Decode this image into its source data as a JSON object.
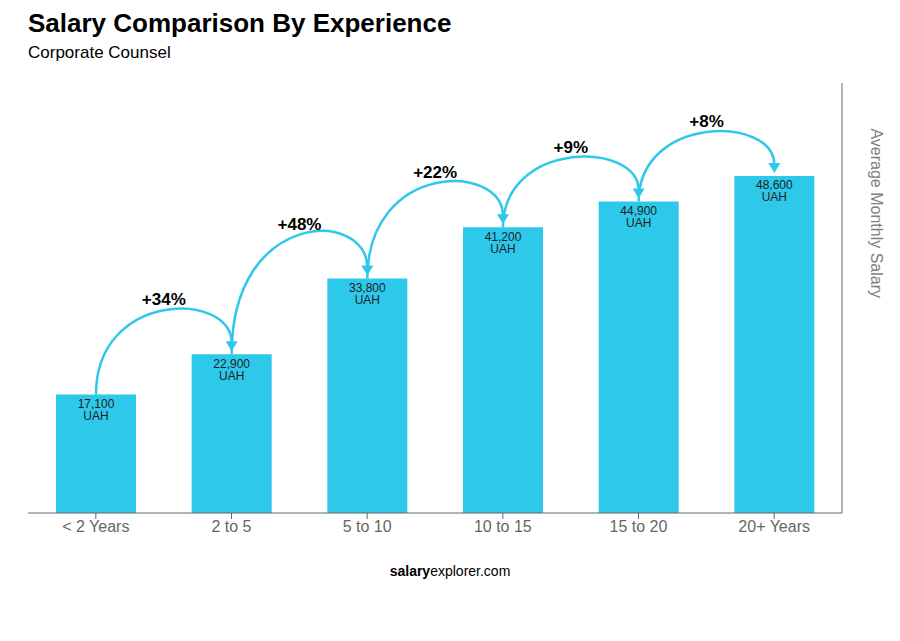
{
  "chart_data": {
    "type": "bar",
    "title": "Salary Comparison By Experience",
    "subtitle": "Corporate Counsel",
    "ylabel": "Average Monthly Salary",
    "categories": [
      "< 2 Years",
      "2 to 5",
      "5 to 10",
      "10 to 15",
      "15 to 20",
      "20+ Years"
    ],
    "values": [
      17100,
      22900,
      33800,
      41200,
      44900,
      48600
    ],
    "value_labels": [
      "17,100 UAH",
      "22,900 UAH",
      "33,800 UAH",
      "41,200 UAH",
      "44,900 UAH",
      "48,600 UAH"
    ],
    "data_labels": true,
    "annotations": [
      "+34%",
      "+48%",
      "+22%",
      "+9%",
      "+8%"
    ],
    "footer": [
      "salary",
      "explorer.com"
    ],
    "color": "#2ec8ea",
    "ylim": [
      0,
      62000
    ],
    "tick_labels": "x",
    "grid": false
  }
}
